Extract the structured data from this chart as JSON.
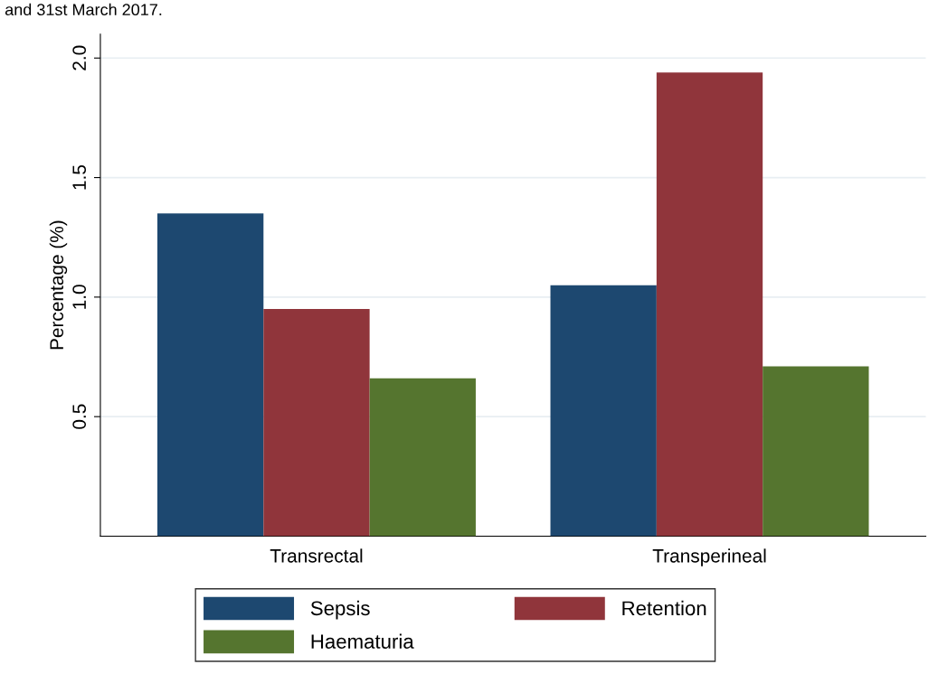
{
  "chart_data": {
    "type": "bar",
    "ylabel": "Percentage (%)",
    "categories": [
      "Transrectal",
      "Transperineal"
    ],
    "series": [
      {
        "name": "Sepsis",
        "color": "#1d4870",
        "values": [
          1.35,
          1.05
        ]
      },
      {
        "name": "Retention",
        "color": "#90353b",
        "values": [
          0.95,
          1.94
        ]
      },
      {
        "name": "Haematuria",
        "color": "#55752f",
        "values": [
          0.66,
          0.71
        ]
      }
    ],
    "ylim": [
      0,
      2.1
    ],
    "yticks": [
      {
        "value": 0.5,
        "label": "0.5"
      },
      {
        "value": 1.0,
        "label": "1.0"
      },
      {
        "value": 1.5,
        "label": "1.5"
      },
      {
        "value": 2.0,
        "label": "2.0"
      }
    ],
    "grid": "y",
    "legend": "bottom",
    "annotations": [
      "and 31st March 2017."
    ]
  }
}
